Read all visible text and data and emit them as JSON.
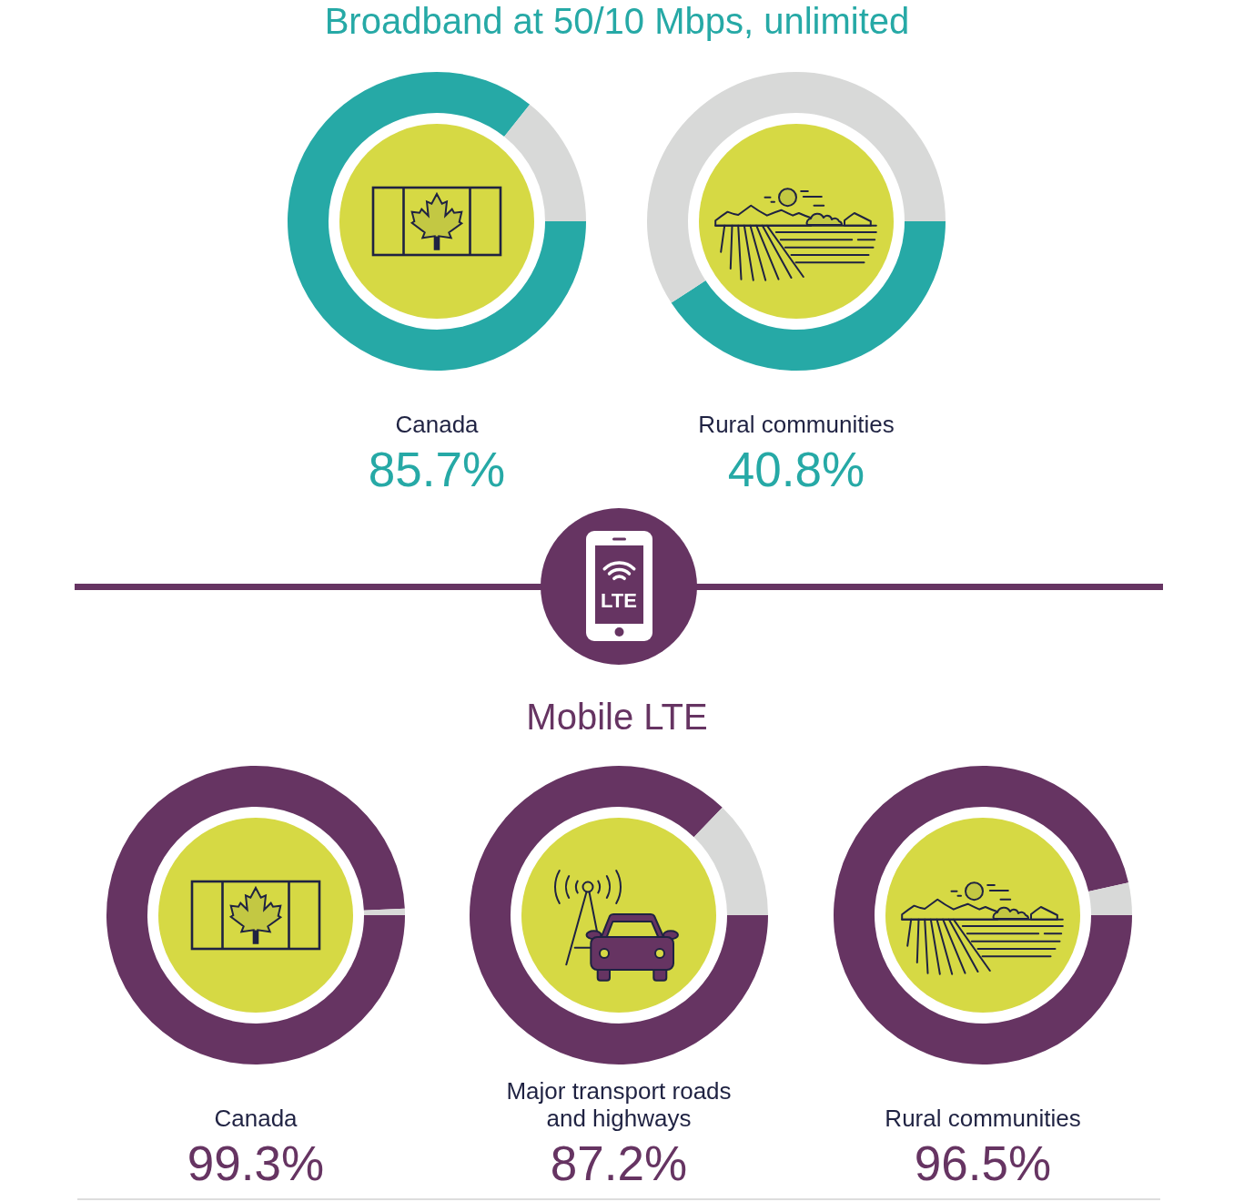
{
  "chart_data": [
    {
      "type": "other",
      "title": "Broadband at 50/10 Mbps, unlimited"
    },
    {
      "type": "donut",
      "categories": [
        "Canada",
        null
      ],
      "values": [
        85.7,
        14.3
      ],
      "colors": [
        "#26a9a6",
        "#d8d9d8"
      ],
      "value_labels": [
        "85.7%",
        null
      ]
    },
    {
      "type": "donut",
      "categories": [
        "Rural communities",
        null
      ],
      "values": [
        40.8,
        59.2
      ],
      "colors": [
        "#26a9a6",
        "#d8d9d8"
      ],
      "value_labels": [
        "40.8%",
        null
      ]
    },
    {
      "type": "other",
      "title": "Mobile LTE",
      "annotations": [
        "LTE"
      ]
    },
    {
      "type": "donut",
      "categories": [
        "Canada",
        null
      ],
      "values": [
        99.3,
        0.7
      ],
      "colors": [
        "#663462",
        "#d8d9d8"
      ],
      "value_labels": [
        "99.3%",
        null
      ]
    },
    {
      "type": "donut",
      "categories": [
        "Major transport roads and highways",
        null
      ],
      "values": [
        87.2,
        12.8
      ],
      "colors": [
        "#663462",
        "#d8d9d8"
      ],
      "value_labels": [
        "87.2%",
        null
      ]
    },
    {
      "type": "donut",
      "categories": [
        "Rural communities",
        null
      ],
      "values": [
        96.5,
        3.5
      ],
      "colors": [
        "#663462",
        "#d8d9d8"
      ],
      "value_labels": [
        "96.5%",
        null
      ]
    }
  ]
}
